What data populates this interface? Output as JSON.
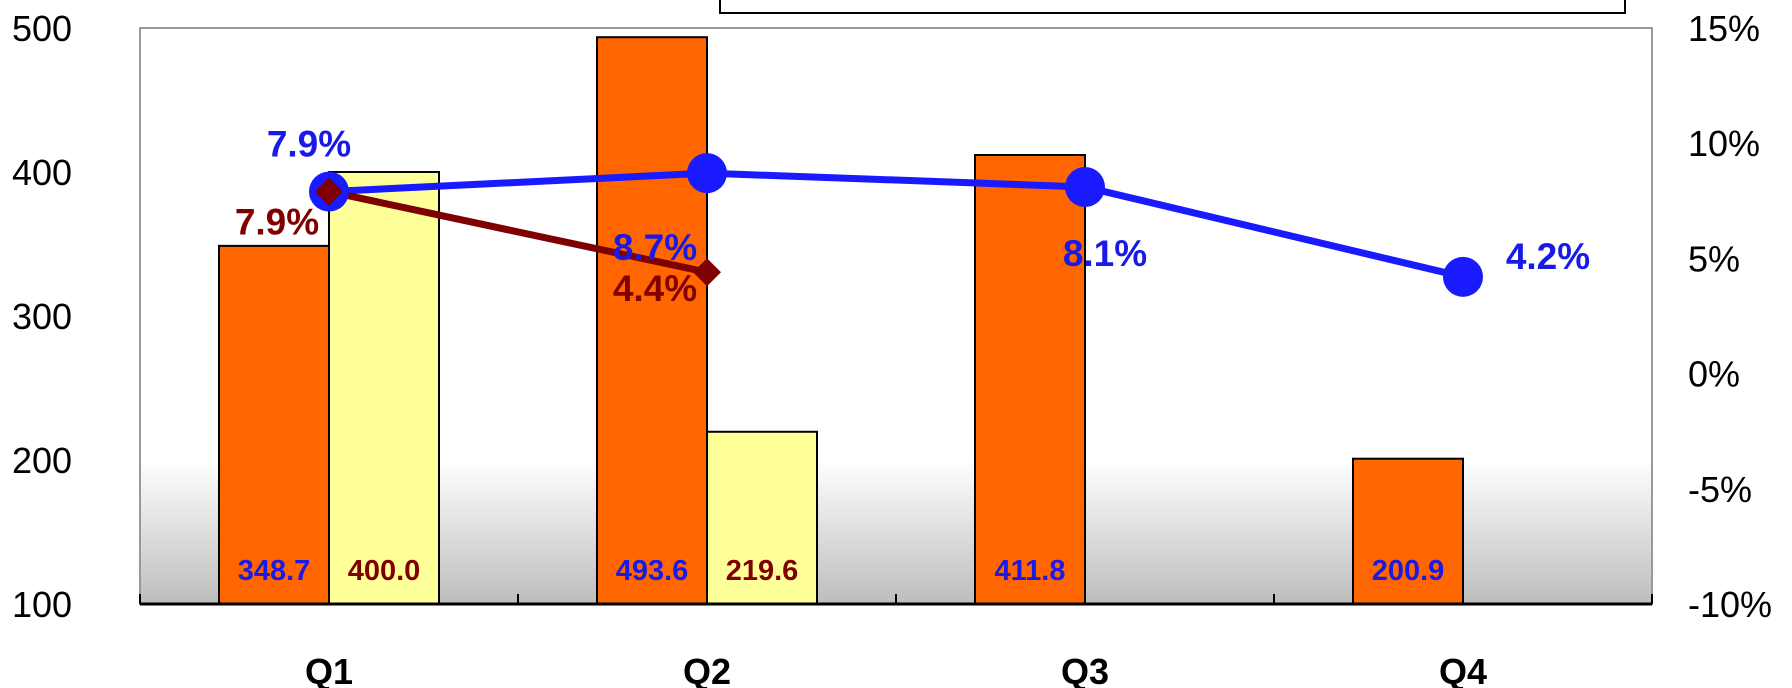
{
  "colors": {
    "bar_primary": "#FF6600",
    "bar_secondary": "#FFFF99",
    "line_primary": "#1A1AFF",
    "line_secondary": "#7F0000",
    "label_primary": "#1A1AE6",
    "label_secondary": "#800000"
  },
  "chart_data": {
    "type": "bar",
    "categories": [
      "Q1",
      "Q2",
      "Q3",
      "Q4"
    ],
    "ylim": [
      100,
      500
    ],
    "y_ticks": [
      "500",
      "400",
      "300",
      "200",
      "100"
    ],
    "y2lim": [
      -10,
      15
    ],
    "y2_ticks": [
      "15%",
      "10%",
      "5%",
      "0%",
      "-5%",
      "-10%"
    ],
    "grid": false,
    "bar_series": [
      {
        "values": [
          348.7,
          493.6,
          411.8,
          200.9
        ],
        "labels": [
          "348.7",
          "493.6",
          "411.8",
          "200.9"
        ]
      },
      {
        "values": [
          400.0,
          219.6,
          null,
          null
        ],
        "labels": [
          "400.0",
          "219.6",
          "",
          ""
        ]
      }
    ],
    "line_series": [
      {
        "values": [
          7.9,
          8.7,
          8.1,
          4.2
        ],
        "labels": [
          "7.9%",
          "8.7%",
          "8.1%",
          "4.2%"
        ],
        "marker": "circle"
      },
      {
        "values": [
          7.9,
          4.4,
          null,
          null
        ],
        "labels": [
          "7.9%",
          "4.4%",
          "",
          ""
        ],
        "marker": "diamond"
      }
    ]
  }
}
